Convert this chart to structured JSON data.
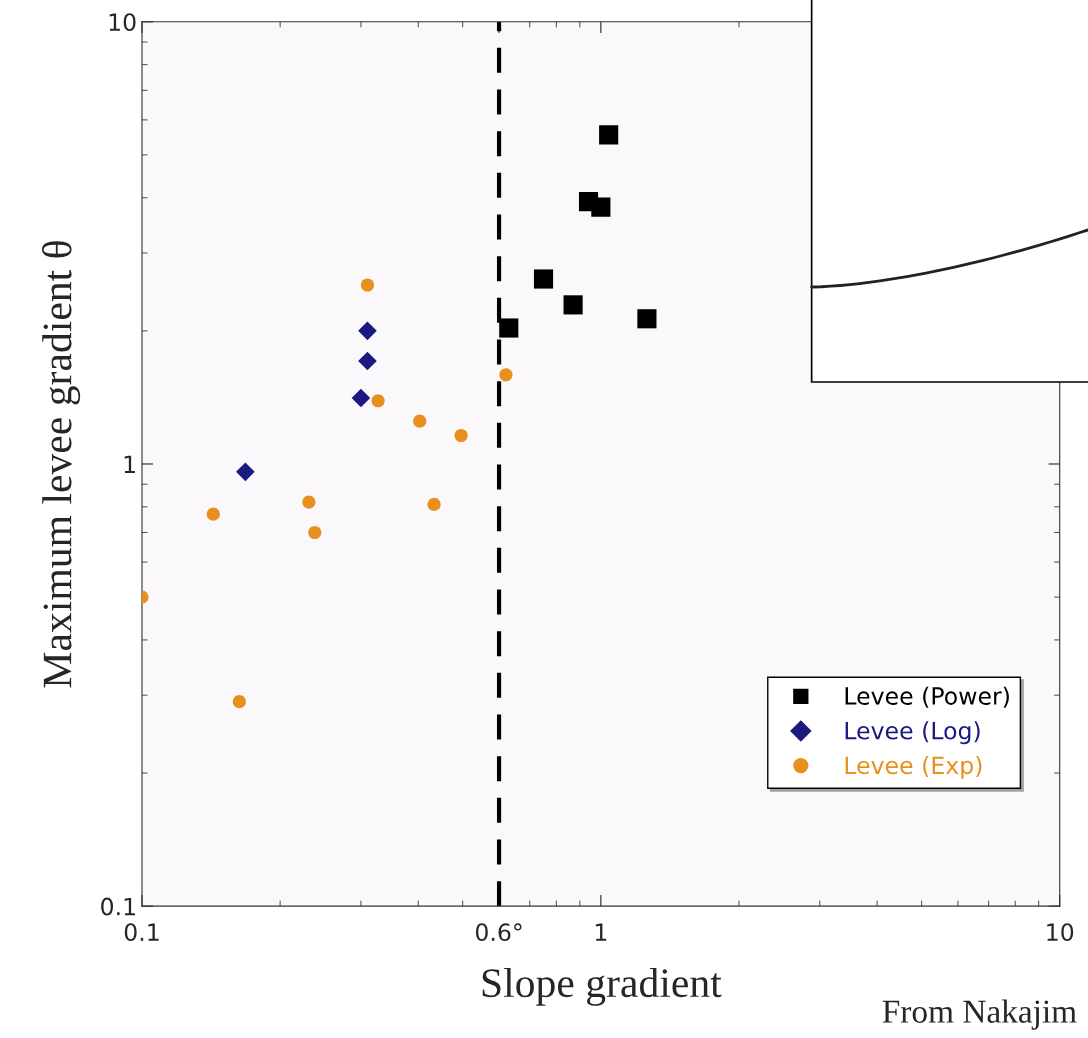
{
  "chart_data": {
    "type": "scatter",
    "xlabel": "Slope gradient",
    "ylabel": "Maximum levee gradient θ",
    "log": "xy",
    "xlim": [
      0.1,
      10
    ],
    "ylim": [
      0.1,
      10
    ],
    "xticks": [
      0.1,
      {
        "value": 0.6,
        "label": "0.6°"
      },
      1,
      10
    ],
    "yticks": [
      0.1,
      1,
      10
    ],
    "grid": false,
    "legend": "bottom right",
    "series": [
      {
        "name": "Levee (Power)",
        "color": "#000000",
        "marker": "square",
        "x": [
          0.63,
          0.75,
          0.87,
          0.94,
          1.0,
          1.04,
          1.26
        ],
        "values": [
          2.03,
          2.62,
          2.29,
          3.92,
          3.81,
          5.55,
          2.13
        ]
      },
      {
        "name": "Levee (Log)",
        "color": "#1a1a80",
        "marker": "diamond",
        "x": [
          0.168,
          0.31,
          0.31,
          0.3
        ],
        "values": [
          0.96,
          2.0,
          1.71,
          1.41
        ]
      },
      {
        "name": "Levee (Exp)",
        "color": "#e8901e",
        "marker": "circle",
        "x": [
          0.1,
          0.143,
          0.163,
          0.231,
          0.238,
          0.31,
          0.327,
          0.403,
          0.433,
          0.496,
          0.621
        ],
        "values": [
          0.5,
          0.77,
          0.29,
          0.82,
          0.7,
          2.54,
          1.39,
          1.25,
          0.81,
          1.16,
          1.59
        ]
      }
    ],
    "ref_lines": [
      {
        "axis": "x",
        "value": 0.6,
        "color": "#000000",
        "line_style": "dashed"
      }
    ],
    "annotations": [
      "From Nakajim"
    ]
  }
}
